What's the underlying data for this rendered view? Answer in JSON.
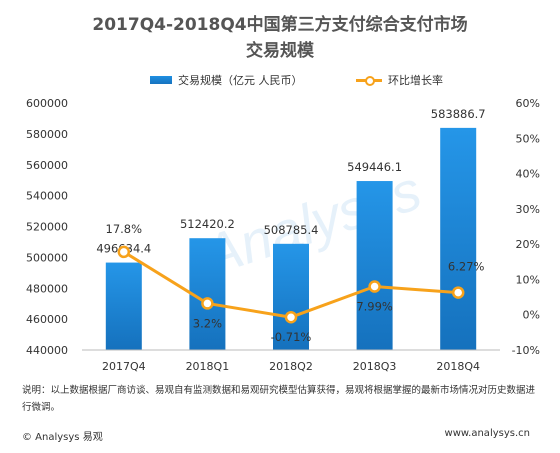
{
  "title_line1": "2017Q4-2018Q4中国第三方支付综合支付市场",
  "title_line2": "交易规模",
  "legend": {
    "bar_label": "交易规模（亿元 人民币）",
    "line_label": "环比增长率"
  },
  "note": "说明：以上数据根据厂商访谈、易观自有监测数据和易观研究模型估算获得，易观将根据掌握的最新市场情况对历史数据进行微调。",
  "footer": {
    "left": "© Analysys 易观",
    "right": "www.analysys.cn"
  },
  "watermark": "Analysys",
  "colors": {
    "bar": "#1a86d6",
    "line": "#f7a21b",
    "title": "#555555"
  },
  "chart_data": {
    "type": "bar",
    "categories": [
      "2017Q4",
      "2018Q1",
      "2018Q2",
      "2018Q3",
      "2018Q4"
    ],
    "series": [
      {
        "name": "交易规模（亿元 人民币）",
        "type": "bar",
        "axis": "left",
        "values": [
          496634.4,
          512420.2,
          508785.4,
          549446.1,
          583886.7
        ],
        "labels": [
          "496634.4",
          "512420.2",
          "508785.4",
          "549446.1",
          "583886.7"
        ]
      },
      {
        "name": "环比增长率",
        "type": "line",
        "axis": "right",
        "values": [
          17.8,
          3.2,
          -0.71,
          7.99,
          6.27
        ],
        "labels": [
          "17.8%",
          "3.2%",
          "-0.71%",
          "7.99%",
          "6.27%"
        ]
      }
    ],
    "y_left": {
      "ylim": [
        440000,
        600000
      ],
      "ticks": [
        "440000",
        "460000",
        "480000",
        "500000",
        "520000",
        "540000",
        "560000",
        "580000",
        "600000"
      ]
    },
    "y_right": {
      "ylim": [
        -10,
        60
      ],
      "ticks": [
        "-10%",
        "0%",
        "10%",
        "20%",
        "30%",
        "40%",
        "50%",
        "60%"
      ]
    },
    "grid": false,
    "legend_position": "top"
  }
}
